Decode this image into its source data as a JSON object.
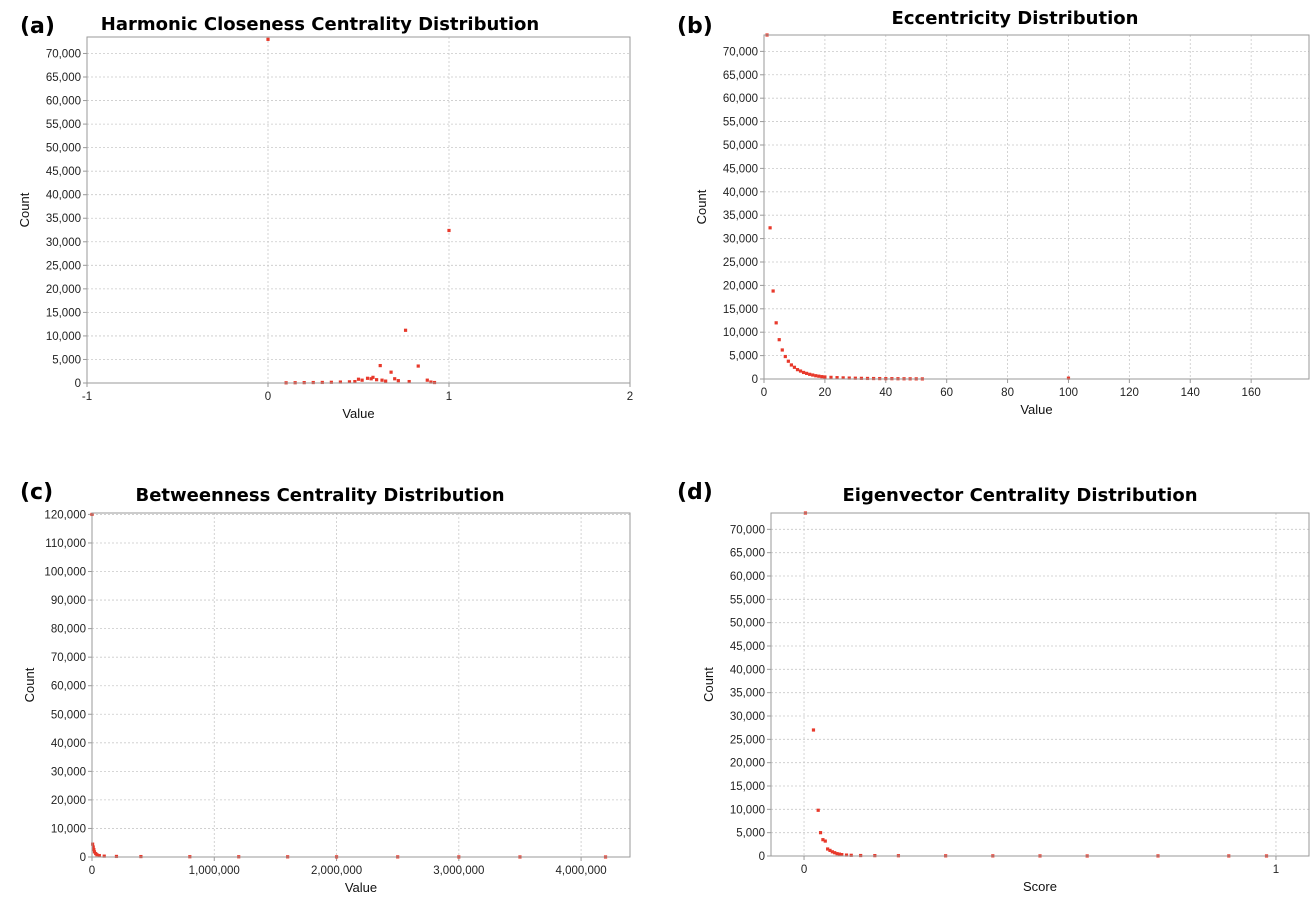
{
  "panels": [
    {
      "letter": "(a)"
    },
    {
      "letter": "(b)"
    },
    {
      "letter": "(c)"
    },
    {
      "letter": "(d)"
    }
  ],
  "colors": {
    "point": "#e8392b",
    "frame": "#9a9a9a",
    "grid": "#c9c9c9",
    "background": "#ffffff"
  },
  "chart_data": [
    {
      "type": "scatter",
      "title": "Harmonic Closeness Centrality Distribution",
      "xlabel": "Value",
      "ylabel": "Count",
      "xlim": [
        -1,
        2
      ],
      "ylim": [
        0,
        73500
      ],
      "xticks": [
        -1,
        0,
        1,
        2
      ],
      "xtick_labels": [
        "-1",
        "0",
        "1",
        "2"
      ],
      "yticks": [
        0,
        5000,
        10000,
        15000,
        20000,
        25000,
        30000,
        35000,
        40000,
        45000,
        50000,
        55000,
        60000,
        65000,
        70000
      ],
      "ytick_labels": [
        "0",
        "5,000",
        "10,000",
        "15,000",
        "20,000",
        "25,000",
        "30,000",
        "35,000",
        "40,000",
        "45,000",
        "50,000",
        "55,000",
        "60,000",
        "65,000",
        "70,000"
      ],
      "grid": true,
      "series": [
        {
          "x": [
            0,
            1,
            0.76,
            0.83,
            0.62,
            0.68,
            0.58,
            0.55,
            0.5,
            0.52,
            0.6,
            0.65,
            0.7,
            0.72,
            0.78,
            0.88,
            0.48,
            0.45,
            0.4,
            0.35,
            0.3,
            0.25,
            0.2,
            0.15,
            0.1,
            0.9,
            0.92,
            0.57,
            0.63
          ],
          "y": [
            73000,
            32400,
            11200,
            3600,
            3700,
            2300,
            1200,
            1000,
            800,
            600,
            700,
            400,
            900,
            500,
            300,
            600,
            300,
            250,
            200,
            150,
            120,
            100,
            80,
            60,
            40,
            200,
            100,
            900,
            600
          ]
        }
      ]
    },
    {
      "type": "scatter",
      "title": "Eccentricity Distribution",
      "xlabel": "Value",
      "ylabel": "Count",
      "xlim": [
        0,
        179
      ],
      "ylim": [
        0,
        73500
      ],
      "xticks": [
        0,
        20,
        40,
        60,
        80,
        100,
        120,
        140,
        160
      ],
      "xtick_labels": [
        "0",
        "20",
        "40",
        "60",
        "80",
        "100",
        "120",
        "140",
        "160"
      ],
      "yticks": [
        0,
        5000,
        10000,
        15000,
        20000,
        25000,
        30000,
        35000,
        40000,
        45000,
        50000,
        55000,
        60000,
        65000,
        70000
      ],
      "ytick_labels": [
        "0",
        "5,000",
        "10,000",
        "15,000",
        "20,000",
        "25,000",
        "30,000",
        "35,000",
        "40,000",
        "45,000",
        "50,000",
        "55,000",
        "60,000",
        "65,000",
        "70,000"
      ],
      "grid": true,
      "series": [
        {
          "x": [
            1,
            2,
            3,
            4,
            5,
            6,
            7,
            8,
            9,
            10,
            11,
            12,
            13,
            14,
            15,
            16,
            17,
            18,
            19,
            20,
            22,
            24,
            26,
            28,
            30,
            32,
            34,
            36,
            38,
            40,
            42,
            44,
            46,
            48,
            50,
            52,
            100
          ],
          "y": [
            73500,
            32300,
            18800,
            12000,
            8400,
            6200,
            4800,
            3800,
            3000,
            2500,
            2000,
            1700,
            1400,
            1200,
            1000,
            850,
            700,
            600,
            500,
            430,
            350,
            290,
            240,
            200,
            170,
            140,
            120,
            100,
            90,
            80,
            70,
            60,
            50,
            40,
            30,
            20,
            180
          ]
        }
      ]
    },
    {
      "type": "scatter",
      "title": "Betweenness Centrality Distribution",
      "xlabel": "Value",
      "ylabel": "Count",
      "xlim": [
        0,
        4400000
      ],
      "ylim": [
        0,
        120500
      ],
      "xticks": [
        0,
        1000000,
        2000000,
        3000000,
        4000000
      ],
      "xtick_labels": [
        "0",
        "1,000,000",
        "2,000,000",
        "3,000,000",
        "4,000,000"
      ],
      "yticks": [
        0,
        10000,
        20000,
        30000,
        40000,
        50000,
        60000,
        70000,
        80000,
        90000,
        100000,
        110000,
        120000
      ],
      "ytick_labels": [
        "0",
        "10,000",
        "20,000",
        "30,000",
        "40,000",
        "50,000",
        "60,000",
        "70,000",
        "80,000",
        "90,000",
        "100,000",
        "110,000",
        "120,000"
      ],
      "grid": true,
      "series": [
        {
          "x": [
            0,
            5000,
            10000,
            15000,
            20000,
            30000,
            40000,
            60000,
            100000,
            200000,
            400000,
            800000,
            1200000,
            1600000,
            2000000,
            2500000,
            3000000,
            3500000,
            4200000
          ],
          "y": [
            120000,
            4500,
            3500,
            2600,
            1800,
            1200,
            800,
            500,
            300,
            200,
            150,
            100,
            80,
            60,
            50,
            40,
            30,
            20,
            10
          ]
        }
      ]
    },
    {
      "type": "scatter",
      "title": "Eigenvector Centrality Distribution",
      "xlabel": "Score",
      "ylabel": "Count",
      "xlim": [
        -0.07,
        1.07
      ],
      "ylim": [
        0,
        73500
      ],
      "xticks": [
        0,
        1
      ],
      "xtick_labels": [
        "0",
        "1"
      ],
      "yticks": [
        0,
        5000,
        10000,
        15000,
        20000,
        25000,
        30000,
        35000,
        40000,
        45000,
        50000,
        55000,
        60000,
        65000,
        70000
      ],
      "ytick_labels": [
        "0",
        "5,000",
        "10,000",
        "15,000",
        "20,000",
        "25,000",
        "30,000",
        "35,000",
        "40,000",
        "45,000",
        "50,000",
        "55,000",
        "60,000",
        "65,000",
        "70,000"
      ],
      "grid": true,
      "series": [
        {
          "x": [
            0.003,
            0.02,
            0.03,
            0.035,
            0.04,
            0.045,
            0.05,
            0.055,
            0.06,
            0.065,
            0.07,
            0.075,
            0.08,
            0.09,
            0.1,
            0.12,
            0.15,
            0.2,
            0.3,
            0.4,
            0.5,
            0.6,
            0.75,
            0.9,
            0.98
          ],
          "y": [
            73500,
            27000,
            9800,
            5000,
            3500,
            3200,
            1500,
            1200,
            900,
            700,
            500,
            400,
            300,
            200,
            150,
            100,
            80,
            60,
            40,
            30,
            20,
            10,
            20,
            15,
            10
          ]
        }
      ]
    }
  ]
}
